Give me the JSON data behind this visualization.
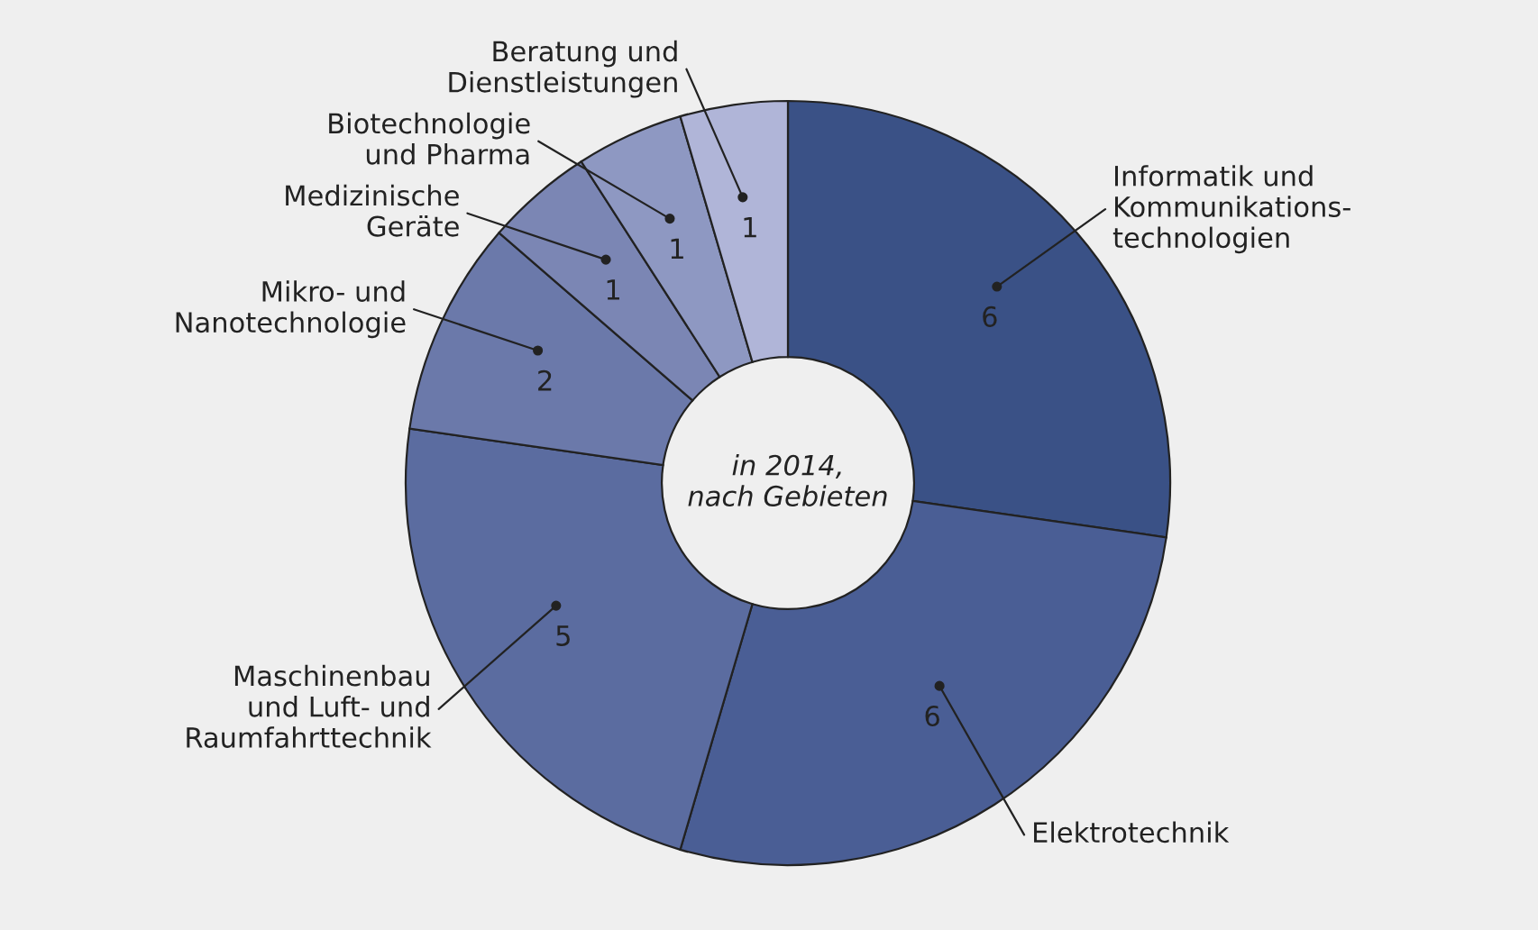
{
  "chart_data": {
    "type": "donut",
    "categories": [
      "Informatik und\nKommunikations-\ntechnologien",
      "Elektrotechnik",
      "Maschinenbau\nund Luft- und\nRaumfahrttechnik",
      "Mikro- und\nNanotechnologie",
      "Medizinische\nGeräte",
      "Biotechnologie\nund Pharma",
      "Beratung und\nDienstleistungen"
    ],
    "values": [
      6,
      6,
      5,
      2,
      1,
      1,
      1
    ],
    "colors": [
      "#3a5186",
      "#4a5e95",
      "#5b6ca0",
      "#6b79aa",
      "#7b86b4",
      "#8e98c2",
      "#b0b5d8"
    ],
    "data_labels": true,
    "annotations": [
      "in 2014,\nnach Gebieten"
    ]
  }
}
